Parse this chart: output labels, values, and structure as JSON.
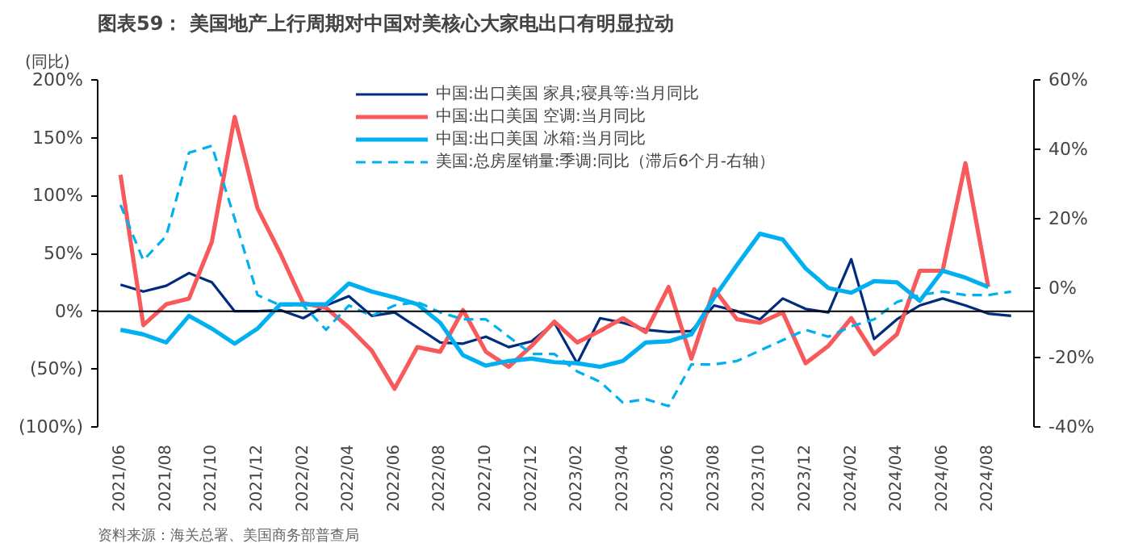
{
  "chart_data": {
    "type": "line",
    "title": "图表59：  美国地产上行周期对中国对美核心大家电出口有明显拉动",
    "ylabel": "(同比)",
    "annotations": [
      "资料来源：海关总署、美国商务部普查局"
    ],
    "categories": [
      "2021/06",
      null,
      "2021/08",
      null,
      "2021/10",
      null,
      "2021/12",
      null,
      "2022/02",
      null,
      "2022/04",
      null,
      "2022/06",
      null,
      "2022/08",
      null,
      "2022/10",
      null,
      "2022/12",
      null,
      "2023/02",
      null,
      "2023/04",
      null,
      "2023/06",
      null,
      "2023/08",
      null,
      "2023/10",
      null,
      "2023/12",
      null,
      "2024/02",
      null,
      "2024/04",
      null,
      "2024/06",
      null,
      "2024/08",
      null
    ],
    "series": [
      {
        "name": "中国:出口美国 家具;寝具等:当月同比",
        "color": "#002b7f",
        "values": [
          23,
          17,
          22,
          33,
          25,
          0,
          0,
          1,
          -6,
          5,
          13,
          -4,
          -1,
          -14,
          -27,
          -28,
          -22,
          -31,
          -26,
          -10,
          -45,
          -6,
          -10,
          -16,
          -18,
          -17,
          5,
          0,
          -7,
          11,
          2,
          -1,
          45,
          -24,
          -7,
          5,
          11,
          5,
          -2,
          -4
        ]
      },
      {
        "name": "中国:出口美国 空调:当月同比",
        "color": "#f85a5c",
        "values": [
          118,
          -12,
          6,
          11,
          60,
          168,
          89,
          50,
          7,
          3,
          -14,
          -34,
          -67,
          -31,
          -35,
          1,
          -35,
          -48,
          -30,
          -9,
          -27,
          -17,
          -6,
          -18,
          21,
          -41,
          19,
          -7,
          -10,
          -1,
          -45,
          -30,
          -6,
          -37,
          -20,
          35,
          35,
          128,
          21,
          null
        ]
      },
      {
        "name": "中国:出口美国 冰箱:当月同比",
        "color": "#00b0f0",
        "values": [
          -16,
          -20,
          -27,
          -4,
          -15,
          -28,
          -15,
          6,
          6,
          6,
          24,
          17,
          12,
          6,
          -10,
          -38,
          -47,
          -43,
          -41,
          -44,
          -45,
          -48,
          -43,
          -27,
          -26,
          -20,
          12,
          40,
          67,
          62,
          37,
          20,
          16,
          26,
          25,
          9,
          35,
          29,
          21,
          null
        ]
      },
      {
        "name": "美国:总房屋销量:季调:同比（滞后6个月-右轴）",
        "color": "#00b0f0",
        "axis": "y2",
        "line_style": "dashed",
        "values": [
          24,
          8,
          15,
          39,
          41,
          20,
          -2,
          -5,
          -5,
          -12,
          -5,
          -8,
          -5,
          -4,
          -7,
          -9,
          -9,
          -14,
          -19,
          -19,
          -24,
          -27,
          -33,
          -32,
          -34,
          -22,
          -22,
          -21,
          -18,
          -15,
          -12,
          -14,
          -11,
          -9,
          -4,
          -2,
          -1,
          -2,
          -2,
          -1
        ]
      }
    ],
    "ylim": [
      -100,
      200
    ],
    "yticks": [
      {
        "value": 200,
        "label": "200%"
      },
      {
        "value": 150,
        "label": "150%"
      },
      {
        "value": 100,
        "label": "100%"
      },
      {
        "value": 50,
        "label": "50%"
      },
      {
        "value": 0,
        "label": "0%"
      },
      {
        "value": -50,
        "label": "(50%)"
      },
      {
        "value": -100,
        "label": "(100%)"
      }
    ],
    "y2lim": [
      -40,
      60
    ],
    "y2ticks": [
      {
        "value": 60,
        "label": "60%"
      },
      {
        "value": 40,
        "label": "40%"
      },
      {
        "value": 20,
        "label": "20%"
      },
      {
        "value": 0,
        "label": "0%"
      },
      {
        "value": -20,
        "label": "-20%"
      },
      {
        "value": -40,
        "label": "-40%"
      }
    ],
    "ref_lines": [
      {
        "axis": "y",
        "value": 0,
        "color": "#000000"
      }
    ],
    "legend": "top",
    "grid": false,
    "line_style": "solid",
    "marker": "none"
  }
}
